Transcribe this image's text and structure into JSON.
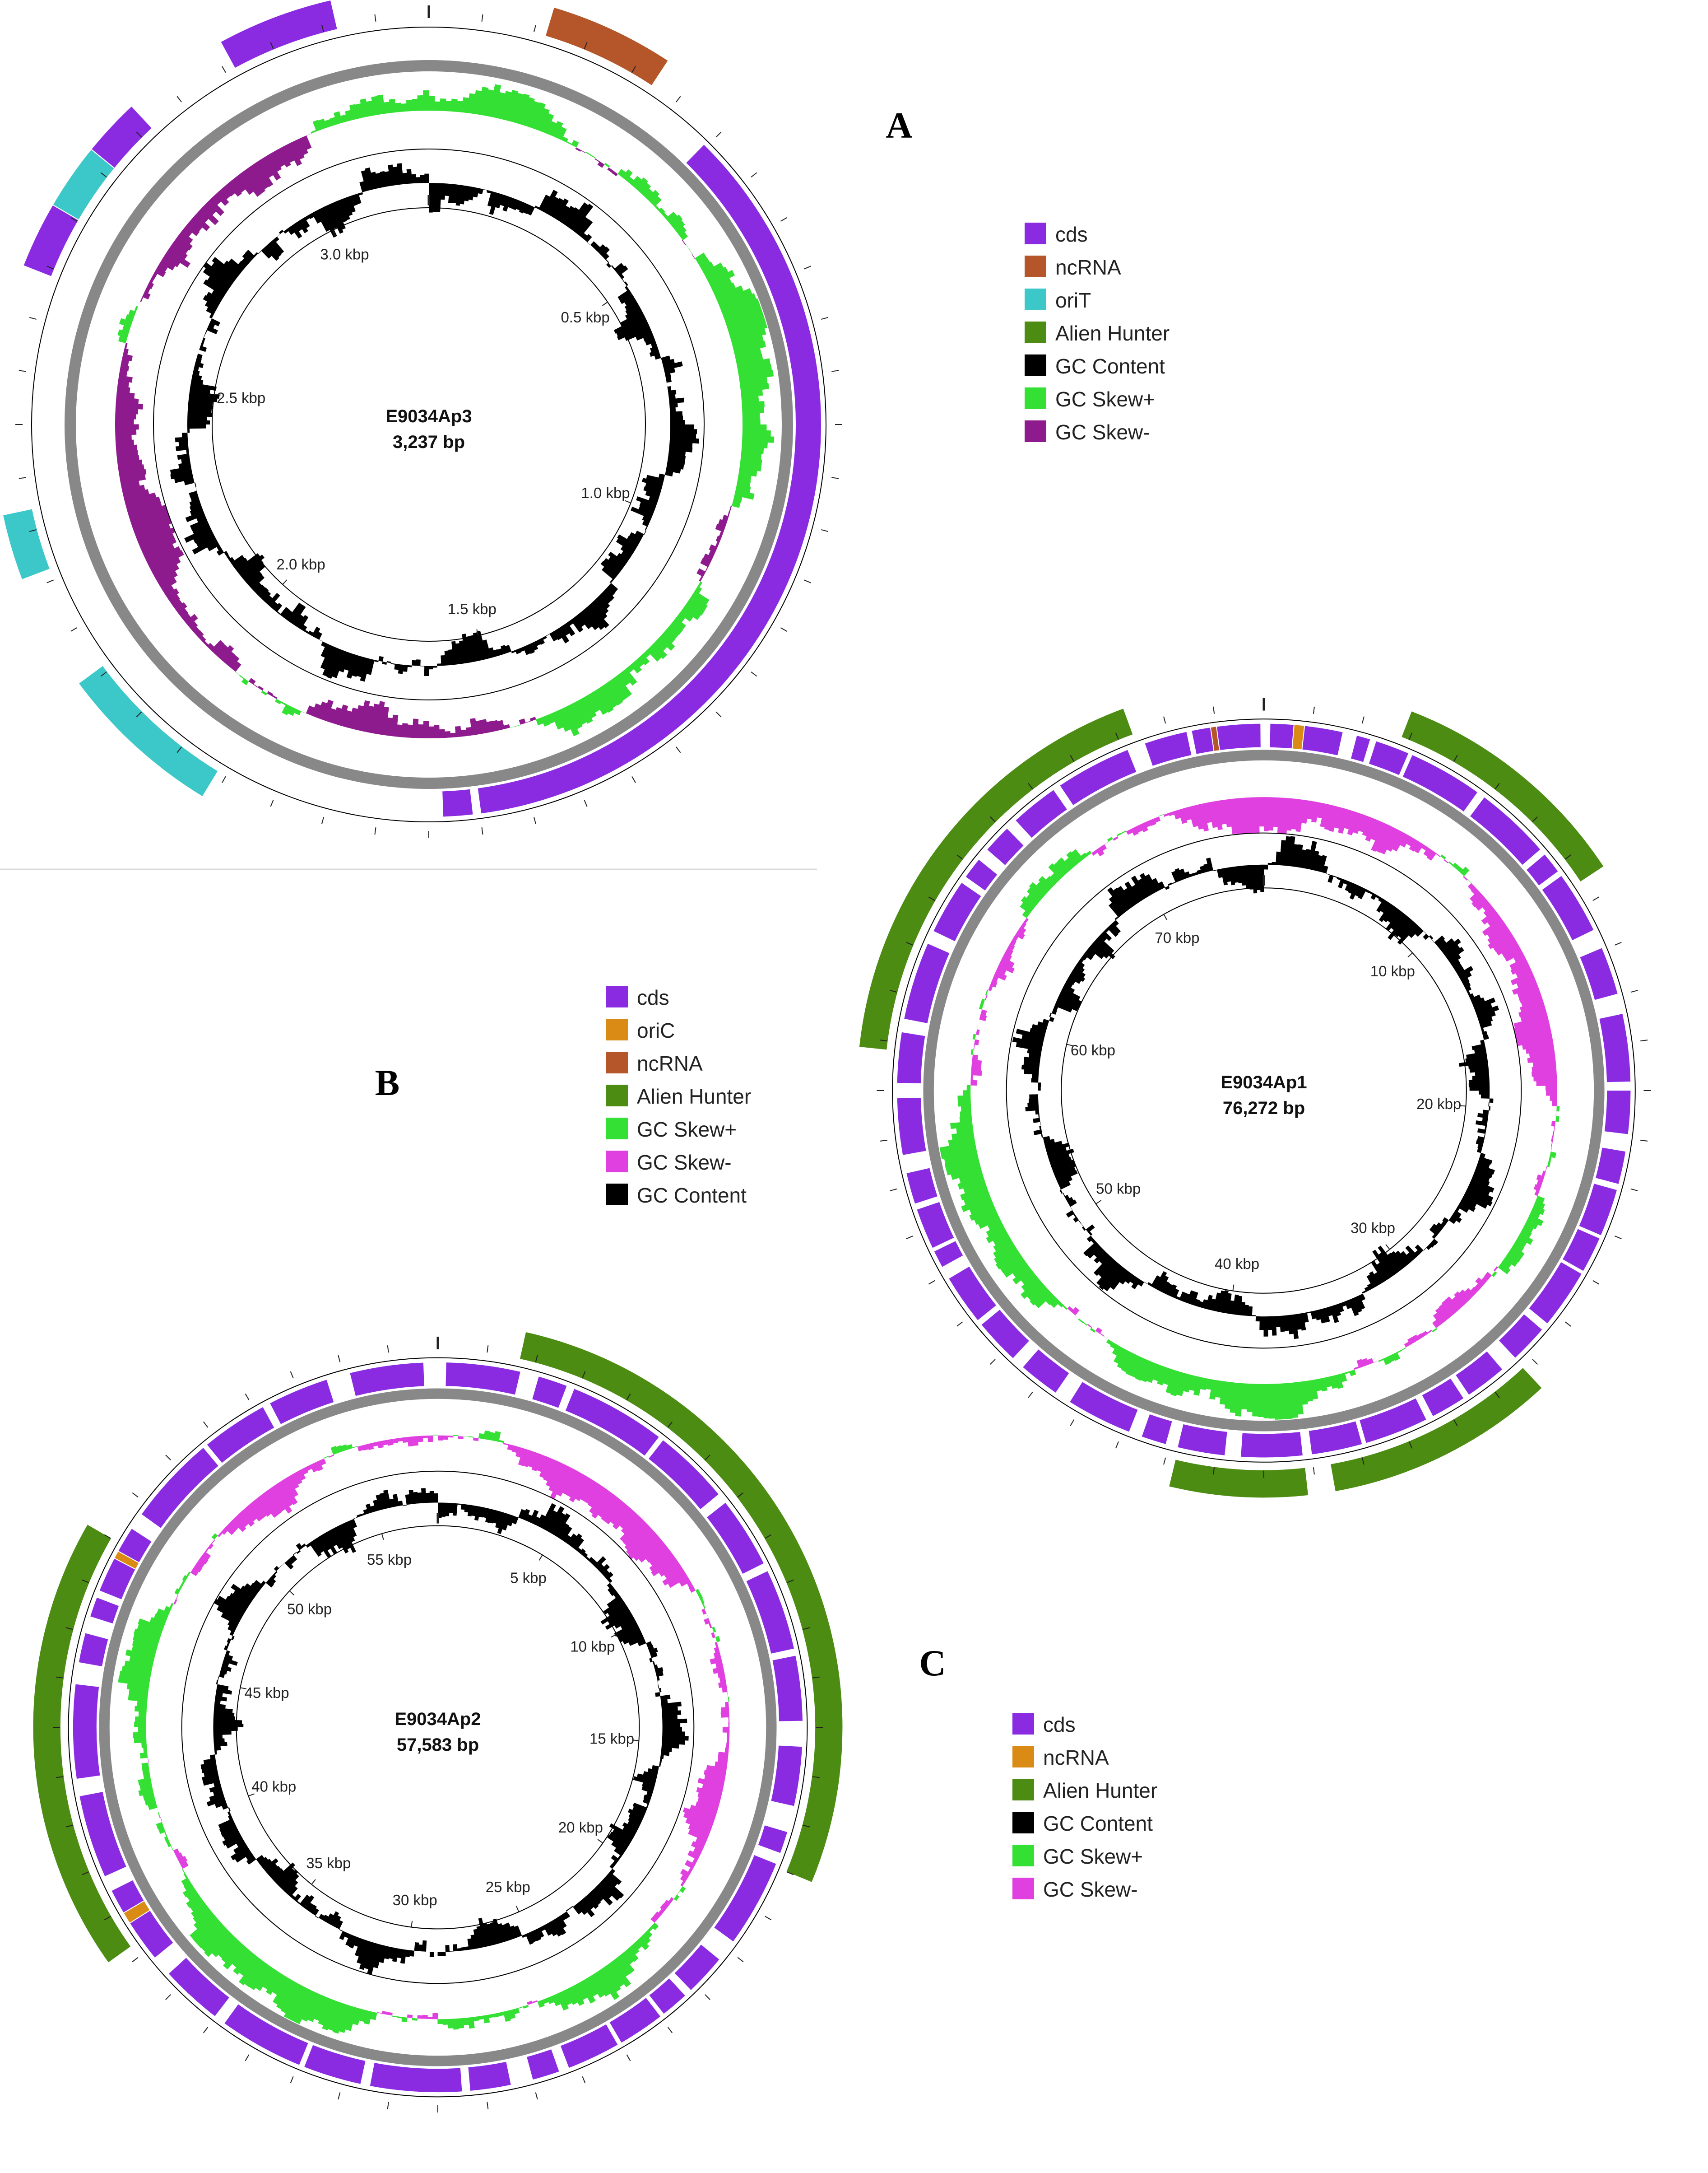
{
  "colors": {
    "cds": "#8a2be2",
    "ncRNA_brown": "#b5562a",
    "ncRNA_orange": "#d98b15",
    "oriT": "#3cc8c8",
    "oriC": "#d98b15",
    "alien": "#4c8c12",
    "gc_content": "#000000",
    "skew_pos": "#33e033",
    "skew_neg_A": "#8e1b8e",
    "skew_neg": "#e040e0",
    "backbone": "#888888",
    "ring": "#000000"
  },
  "panels": {
    "A": {
      "letter": "A",
      "name": "E9034Ap3",
      "length_label": "3,237 bp",
      "total_length": 3237,
      "ticks": [
        {
          "label": "0.5 kbp",
          "pos": 500
        },
        {
          "label": "1.0 kbp",
          "pos": 1000
        },
        {
          "label": "1.5 kbp",
          "pos": 1500
        },
        {
          "label": "2.0 kbp",
          "pos": 2000
        },
        {
          "label": "2.5 kbp",
          "pos": 2500
        },
        {
          "label": "3.0 kbp",
          "pos": 3000
        }
      ],
      "features": [
        {
          "type": "ncRNA",
          "start": 150,
          "end": 300
        },
        {
          "type": "cds",
          "start": 400,
          "end": 1550
        },
        {
          "type": "cds",
          "start": 1560,
          "end": 1600
        },
        {
          "type": "oriT",
          "start": 1900,
          "end": 2100
        },
        {
          "type": "oriT",
          "start": 2240,
          "end": 2320
        },
        {
          "type": "cds",
          "start": 2620,
          "end": 2700
        },
        {
          "type": "oriT",
          "start": 2700,
          "end": 2780
        },
        {
          "type": "cds",
          "start": 2780,
          "end": 2850
        },
        {
          "type": "cds",
          "start": 2980,
          "end": 3120
        }
      ],
      "legend": [
        {
          "label": "cds",
          "color_key": "cds"
        },
        {
          "label": "ncRNA",
          "color_key": "ncRNA_brown"
        },
        {
          "label": "oriT",
          "color_key": "oriT"
        },
        {
          "label": "Alien Hunter",
          "color_key": "alien"
        },
        {
          "label": "GC Content",
          "color_key": "gc_content"
        },
        {
          "label": "GC Skew+",
          "color_key": "skew_pos"
        },
        {
          "label": "GC Skew-",
          "color_key": "skew_neg_A"
        }
      ]
    },
    "B": {
      "letter": "B",
      "name": "E9034Ap1",
      "length_label": "76,272 bp",
      "total_length": 76272,
      "ticks": [
        {
          "label": "10 kbp",
          "pos": 10000
        },
        {
          "label": "20 kbp",
          "pos": 20000
        },
        {
          "label": "30 kbp",
          "pos": 30000
        },
        {
          "label": "40 kbp",
          "pos": 40000
        },
        {
          "label": "50 kbp",
          "pos": 50000
        },
        {
          "label": "60 kbp",
          "pos": 60000
        },
        {
          "label": "70 kbp",
          "pos": 70000
        }
      ],
      "legend": [
        {
          "label": "cds",
          "color_key": "cds"
        },
        {
          "label": "oriC",
          "color_key": "oriC"
        },
        {
          "label": "ncRNA",
          "color_key": "ncRNA_brown"
        },
        {
          "label": "Alien Hunter",
          "color_key": "alien"
        },
        {
          "label": "GC Skew+",
          "color_key": "skew_pos"
        },
        {
          "label": "GC Skew-",
          "color_key": "skew_neg"
        },
        {
          "label": "GC Content",
          "color_key": "gc_content"
        }
      ]
    },
    "C": {
      "letter": "C",
      "name": "E9034Ap2",
      "length_label": "57,583 bp",
      "total_length": 57583,
      "ticks": [
        {
          "label": "5 kbp",
          "pos": 5000
        },
        {
          "label": "10 kbp",
          "pos": 10000
        },
        {
          "label": "15 kbp",
          "pos": 15000
        },
        {
          "label": "20 kbp",
          "pos": 20000
        },
        {
          "label": "25 kbp",
          "pos": 25000
        },
        {
          "label": "30 kbp",
          "pos": 30000
        },
        {
          "label": "35 kbp",
          "pos": 35000
        },
        {
          "label": "40 kbp",
          "pos": 40000
        },
        {
          "label": "45 kbp",
          "pos": 45000
        },
        {
          "label": "50 kbp",
          "pos": 50000
        },
        {
          "label": "55 kbp",
          "pos": 55000
        }
      ],
      "legend": [
        {
          "label": "cds",
          "color_key": "cds"
        },
        {
          "label": "ncRNA",
          "color_key": "ncRNA_orange"
        },
        {
          "label": "Alien Hunter",
          "color_key": "alien"
        },
        {
          "label": "GC Content",
          "color_key": "gc_content"
        },
        {
          "label": "GC Skew+",
          "color_key": "skew_pos"
        },
        {
          "label": "GC Skew-",
          "color_key": "skew_neg"
        }
      ]
    }
  }
}
